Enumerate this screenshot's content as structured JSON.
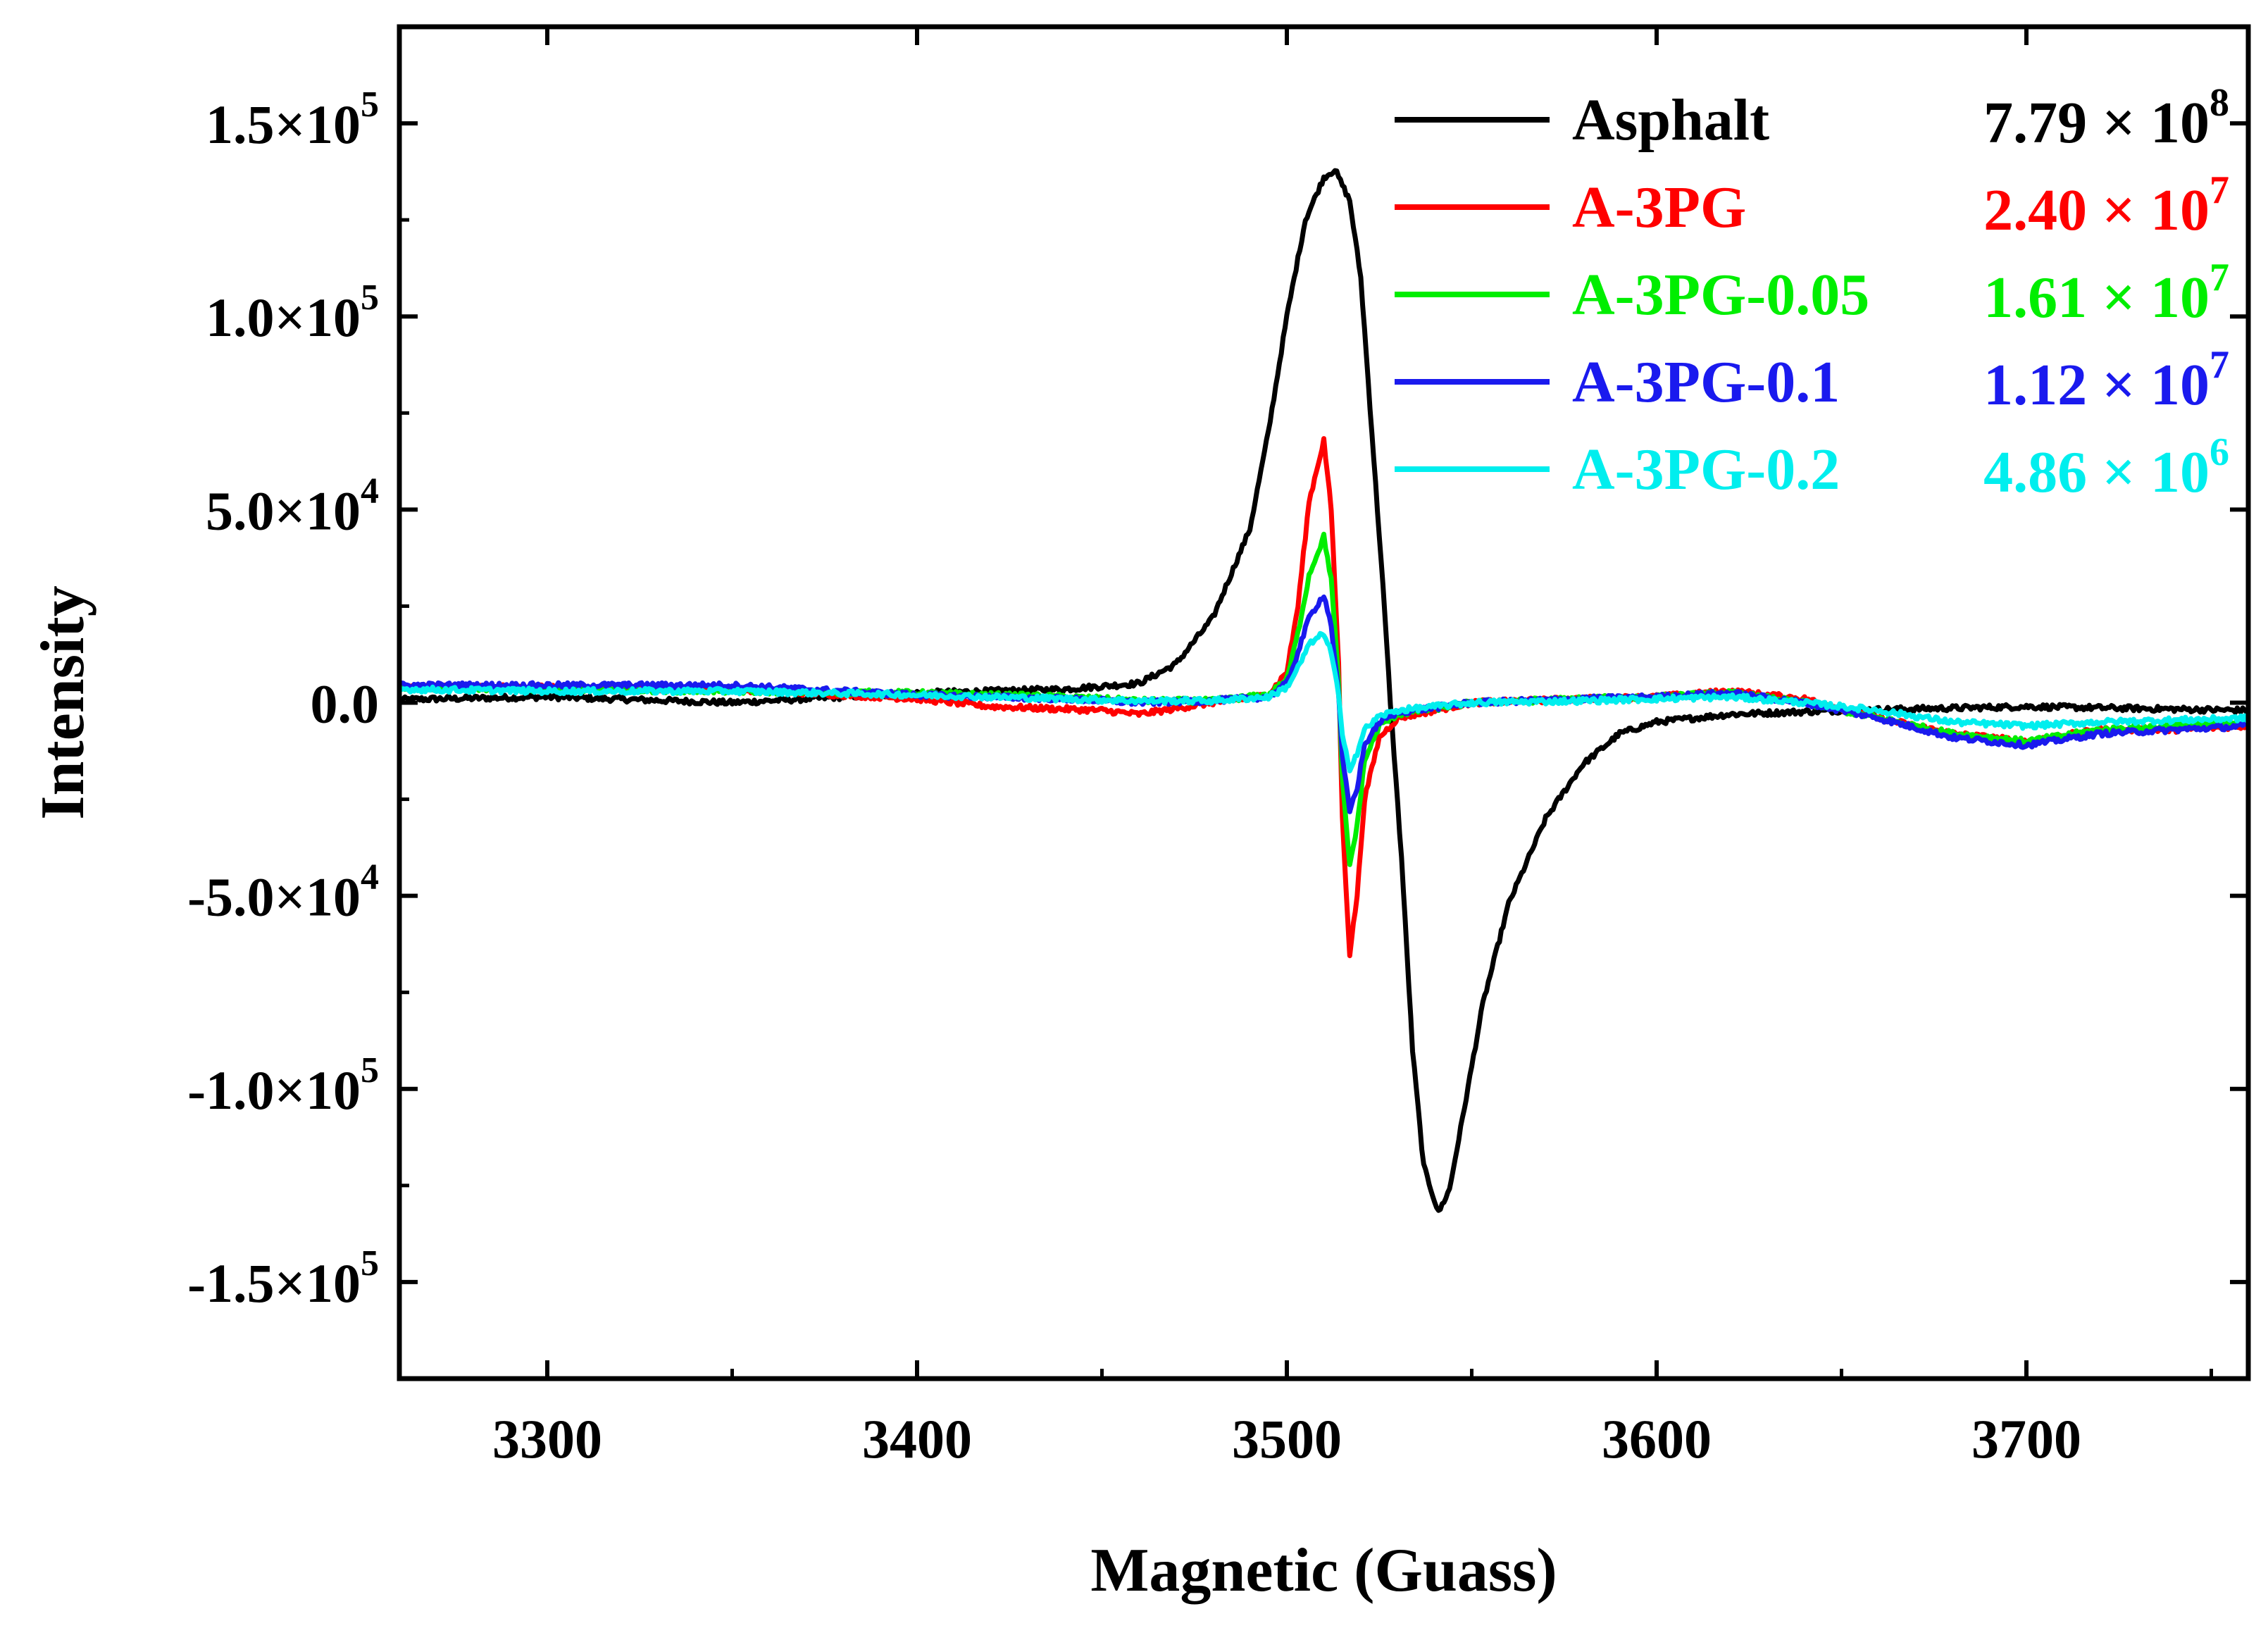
{
  "chart_data": {
    "type": "line",
    "title": "",
    "xlabel": "Magnetic (Guass)",
    "ylabel": "Intensity",
    "xlim": [
      3260,
      3760
    ],
    "ylim": [
      -175000,
      175000
    ],
    "x_ticks": [
      3300,
      3400,
      3500,
      3600,
      3700
    ],
    "x_tick_labels": [
      "3300",
      "3400",
      "3500",
      "3600",
      "3700"
    ],
    "y_ticks": [
      {
        "value": 150000,
        "mantissa": "1.5×10",
        "exp": "5"
      },
      {
        "value": 100000,
        "mantissa": "1.0×10",
        "exp": "5"
      },
      {
        "value": 50000,
        "mantissa": "5.0×10",
        "exp": "4"
      },
      {
        "value": 0,
        "mantissa": "0.0",
        "exp": ""
      },
      {
        "value": -50000,
        "mantissa": "-5.0×10",
        "exp": "4"
      },
      {
        "value": -100000,
        "mantissa": "-1.0×10",
        "exp": "5"
      },
      {
        "value": -150000,
        "mantissa": "-1.5×10",
        "exp": "5"
      }
    ],
    "legend_position": "top-right",
    "series": [
      {
        "name": "Asphalt",
        "value_mantissa": "7.79 × 10",
        "value_exp": "8",
        "color": "#000000",
        "points": [
          [
            3260,
            800
          ],
          [
            3300,
            1500
          ],
          [
            3350,
            0
          ],
          [
            3400,
            2500
          ],
          [
            3440,
            3500
          ],
          [
            3460,
            5000
          ],
          [
            3470,
            10000
          ],
          [
            3480,
            22000
          ],
          [
            3490,
            45000
          ],
          [
            3495,
            70000
          ],
          [
            3500,
            100000
          ],
          [
            3505,
            125000
          ],
          [
            3510,
            136000
          ],
          [
            3513,
            138000
          ],
          [
            3517,
            130000
          ],
          [
            3520,
            110000
          ],
          [
            3523,
            70000
          ],
          [
            3526,
            30000
          ],
          [
            3528,
            0
          ],
          [
            3531,
            -40000
          ],
          [
            3534,
            -90000
          ],
          [
            3537,
            -120000
          ],
          [
            3541,
            -132000
          ],
          [
            3544,
            -126000
          ],
          [
            3548,
            -105000
          ],
          [
            3553,
            -78000
          ],
          [
            3560,
            -52000
          ],
          [
            3570,
            -30000
          ],
          [
            3580,
            -16000
          ],
          [
            3590,
            -8000
          ],
          [
            3600,
            -5000
          ],
          [
            3620,
            -3000
          ],
          [
            3650,
            -2000
          ],
          [
            3700,
            -1000
          ],
          [
            3760,
            -2000
          ]
        ]
      },
      {
        "name": "A-3PG",
        "value_mantissa": "2.40 × 10",
        "value_exp": "7",
        "color": "#ff0000",
        "points": [
          [
            3260,
            4000
          ],
          [
            3300,
            4000
          ],
          [
            3350,
            3500
          ],
          [
            3400,
            1000
          ],
          [
            3420,
            -1000
          ],
          [
            3450,
            -2000
          ],
          [
            3460,
            -3000
          ],
          [
            3480,
            0
          ],
          [
            3495,
            2000
          ],
          [
            3500,
            8000
          ],
          [
            3503,
            25000
          ],
          [
            3506,
            52000
          ],
          [
            3510,
            68000
          ],
          [
            3512,
            50000
          ],
          [
            3514,
            10000
          ],
          [
            3515,
            -30000
          ],
          [
            3517,
            -65000
          ],
          [
            3519,
            -50000
          ],
          [
            3521,
            -25000
          ],
          [
            3525,
            -9000
          ],
          [
            3530,
            -4000
          ],
          [
            3550,
            0
          ],
          [
            3580,
            1000
          ],
          [
            3600,
            1500
          ],
          [
            3620,
            3000
          ],
          [
            3640,
            1000
          ],
          [
            3660,
            -4000
          ],
          [
            3680,
            -8000
          ],
          [
            3700,
            -10000
          ],
          [
            3720,
            -7000
          ],
          [
            3740,
            -7000
          ],
          [
            3760,
            -6000
          ]
        ]
      },
      {
        "name": "A-3PG-0.05",
        "value_mantissa": "1.61 × 10",
        "value_exp": "7",
        "color": "#00ee00",
        "points": [
          [
            3260,
            4000
          ],
          [
            3300,
            3500
          ],
          [
            3350,
            3000
          ],
          [
            3400,
            2500
          ],
          [
            3440,
            1500
          ],
          [
            3460,
            500
          ],
          [
            3480,
            500
          ],
          [
            3495,
            2000
          ],
          [
            3500,
            6000
          ],
          [
            3503,
            18000
          ],
          [
            3506,
            33000
          ],
          [
            3510,
            43000
          ],
          [
            3512,
            32000
          ],
          [
            3514,
            5000
          ],
          [
            3515,
            -20000
          ],
          [
            3517,
            -42000
          ],
          [
            3519,
            -32000
          ],
          [
            3521,
            -15000
          ],
          [
            3525,
            -6000
          ],
          [
            3530,
            -3000
          ],
          [
            3550,
            0
          ],
          [
            3580,
            1000
          ],
          [
            3600,
            1500
          ],
          [
            3620,
            2500
          ],
          [
            3640,
            0
          ],
          [
            3660,
            -4000
          ],
          [
            3680,
            -8000
          ],
          [
            3700,
            -10000
          ],
          [
            3720,
            -7000
          ],
          [
            3740,
            -6000
          ],
          [
            3760,
            -5000
          ]
        ]
      },
      {
        "name": "A-3PG-0.1",
        "value_mantissa": "1.12 × 10",
        "value_exp": "7",
        "color": "#1a1aee",
        "points": [
          [
            3260,
            4500
          ],
          [
            3300,
            4500
          ],
          [
            3350,
            4500
          ],
          [
            3400,
            2000
          ],
          [
            3440,
            1000
          ],
          [
            3460,
            0
          ],
          [
            3480,
            500
          ],
          [
            3495,
            1500
          ],
          [
            3500,
            5000
          ],
          [
            3503,
            13000
          ],
          [
            3506,
            22000
          ],
          [
            3510,
            28000
          ],
          [
            3512,
            20000
          ],
          [
            3514,
            2000
          ],
          [
            3515,
            -14000
          ],
          [
            3517,
            -28000
          ],
          [
            3519,
            -22000
          ],
          [
            3521,
            -11000
          ],
          [
            3525,
            -5000
          ],
          [
            3530,
            -2500
          ],
          [
            3550,
            0
          ],
          [
            3580,
            1000
          ],
          [
            3600,
            1500
          ],
          [
            3620,
            2500
          ],
          [
            3640,
            0
          ],
          [
            3660,
            -4000
          ],
          [
            3680,
            -9000
          ],
          [
            3700,
            -11000
          ],
          [
            3720,
            -8000
          ],
          [
            3740,
            -7000
          ],
          [
            3760,
            -6000
          ]
        ]
      },
      {
        "name": "A-3PG-0.2",
        "value_mantissa": "4.86 × 10",
        "value_exp": "6",
        "color": "#00eeee",
        "points": [
          [
            3260,
            3500
          ],
          [
            3300,
            3000
          ],
          [
            3350,
            3000
          ],
          [
            3400,
            2000
          ],
          [
            3440,
            1000
          ],
          [
            3460,
            500
          ],
          [
            3480,
            500
          ],
          [
            3495,
            1500
          ],
          [
            3500,
            4000
          ],
          [
            3503,
            9000
          ],
          [
            3506,
            15000
          ],
          [
            3510,
            18000
          ],
          [
            3512,
            13000
          ],
          [
            3514,
            2000
          ],
          [
            3515,
            -9000
          ],
          [
            3517,
            -17000
          ],
          [
            3519,
            -13000
          ],
          [
            3521,
            -7000
          ],
          [
            3525,
            -3500
          ],
          [
            3530,
            -2000
          ],
          [
            3550,
            0
          ],
          [
            3580,
            500
          ],
          [
            3600,
            1000
          ],
          [
            3620,
            1500
          ],
          [
            3640,
            0
          ],
          [
            3660,
            -2000
          ],
          [
            3680,
            -5000
          ],
          [
            3700,
            -6000
          ],
          [
            3720,
            -5000
          ],
          [
            3740,
            -4500
          ],
          [
            3760,
            -4000
          ]
        ]
      }
    ]
  }
}
